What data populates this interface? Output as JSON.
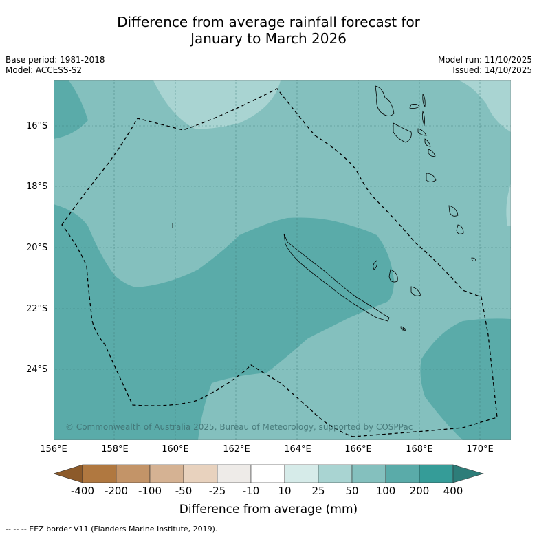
{
  "title": {
    "line1": "Difference from average rainfall forecast for",
    "line2": "January to March 2026"
  },
  "meta": {
    "base_period": "Base period: 1981-2018",
    "model": "Model: ACCESS-S2",
    "model_run": "Model run: 11/10/2025",
    "issued": "Issued: 14/10/2025"
  },
  "map": {
    "lat_labels": [
      "16°S",
      "18°S",
      "20°S",
      "22°S",
      "24°S"
    ],
    "lon_labels": [
      "156°E",
      "158°E",
      "160°E",
      "162°E",
      "164°E",
      "166°E",
      "168°E",
      "170°E"
    ],
    "copyright": "© Commonwealth of Australia 2025, Bureau of Meteorology, supported by COSPPac",
    "colors": {
      "band_25_50": "#a9d4d2",
      "band_50_100": "#84c0be",
      "band_100_200": "#5aaba9",
      "eez": "#000000"
    }
  },
  "colorbar": {
    "ticks": [
      "-400",
      "-200",
      "-100",
      "-50",
      "-25",
      "-10",
      "10",
      "25",
      "50",
      "100",
      "200",
      "400"
    ],
    "colors": [
      "#8c5a2a",
      "#b07840",
      "#c39468",
      "#d5b293",
      "#e8d2be",
      "#eeebe8",
      "#ffffff",
      "#d6ebe9",
      "#a9d4d2",
      "#84c0be",
      "#5aaba9",
      "#359c98",
      "#2d7d79"
    ],
    "label": "Difference from average (mm)"
  },
  "footnote": "--  --  -- EEZ border V11 (Flanders Marine Institute, 2019)."
}
